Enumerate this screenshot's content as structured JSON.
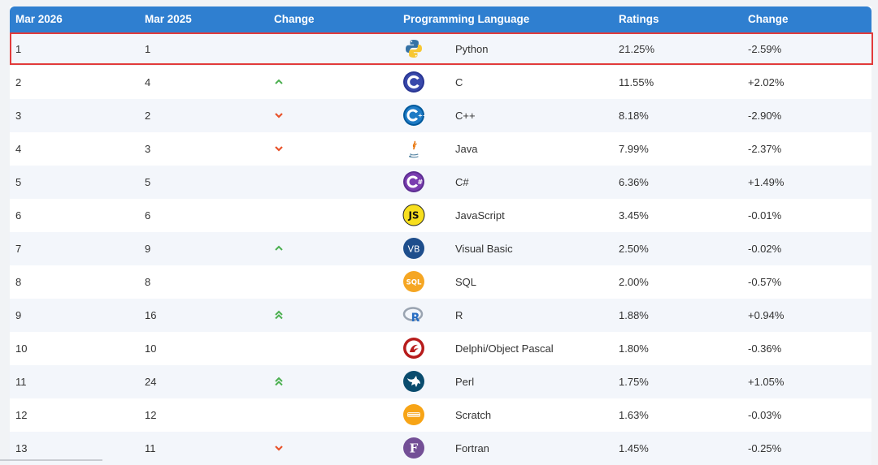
{
  "header": {
    "col_rank_now": "Mar 2026",
    "col_rank_prev": "Mar 2025",
    "col_change": "Change",
    "col_language": "Programming Language",
    "col_ratings": "Ratings",
    "col_change_pct": "Change"
  },
  "colors": {
    "header_bg": "#2f7fd0",
    "highlight_border": "#e23b3b",
    "arrow_up": "#4caf50",
    "arrow_down": "#e8522a",
    "row_alt": "#f3f6fb"
  },
  "rows": [
    {
      "rank": "1",
      "prev": "1",
      "trend": "none",
      "icon": "python-logo-icon",
      "language": "Python",
      "rating": "21.25%",
      "change": "-2.59%"
    },
    {
      "rank": "2",
      "prev": "4",
      "trend": "up",
      "icon": "c-logo-icon",
      "language": "C",
      "rating": "11.55%",
      "change": "+2.02%"
    },
    {
      "rank": "3",
      "prev": "2",
      "trend": "down",
      "icon": "cpp-logo-icon",
      "language": "C++",
      "rating": "8.18%",
      "change": "-2.90%"
    },
    {
      "rank": "4",
      "prev": "3",
      "trend": "down",
      "icon": "java-logo-icon",
      "language": "Java",
      "rating": "7.99%",
      "change": "-2.37%"
    },
    {
      "rank": "5",
      "prev": "5",
      "trend": "none",
      "icon": "csharp-logo-icon",
      "language": "C#",
      "rating": "6.36%",
      "change": "+1.49%"
    },
    {
      "rank": "6",
      "prev": "6",
      "trend": "none",
      "icon": "javascript-logo-icon",
      "language": "JavaScript",
      "rating": "3.45%",
      "change": "-0.01%"
    },
    {
      "rank": "7",
      "prev": "9",
      "trend": "up",
      "icon": "visual-basic-logo-icon",
      "language": "Visual Basic",
      "rating": "2.50%",
      "change": "-0.02%"
    },
    {
      "rank": "8",
      "prev": "8",
      "trend": "none",
      "icon": "sql-logo-icon",
      "language": "SQL",
      "rating": "2.00%",
      "change": "-0.57%"
    },
    {
      "rank": "9",
      "prev": "16",
      "trend": "double-up",
      "icon": "r-logo-icon",
      "language": "R",
      "rating": "1.88%",
      "change": "+0.94%"
    },
    {
      "rank": "10",
      "prev": "10",
      "trend": "none",
      "icon": "delphi-logo-icon",
      "language": "Delphi/Object Pascal",
      "rating": "1.80%",
      "change": "-0.36%"
    },
    {
      "rank": "11",
      "prev": "24",
      "trend": "double-up",
      "icon": "perl-logo-icon",
      "language": "Perl",
      "rating": "1.75%",
      "change": "+1.05%"
    },
    {
      "rank": "12",
      "prev": "12",
      "trend": "none",
      "icon": "scratch-logo-icon",
      "language": "Scratch",
      "rating": "1.63%",
      "change": "-0.03%"
    },
    {
      "rank": "13",
      "prev": "11",
      "trend": "down",
      "icon": "fortran-logo-icon",
      "language": "Fortran",
      "rating": "1.45%",
      "change": "-0.25%"
    }
  ],
  "logo_text": {
    "javascript": "JS",
    "visual_basic": "VB",
    "sql": "SQL",
    "r": "R",
    "fortran": "F"
  }
}
